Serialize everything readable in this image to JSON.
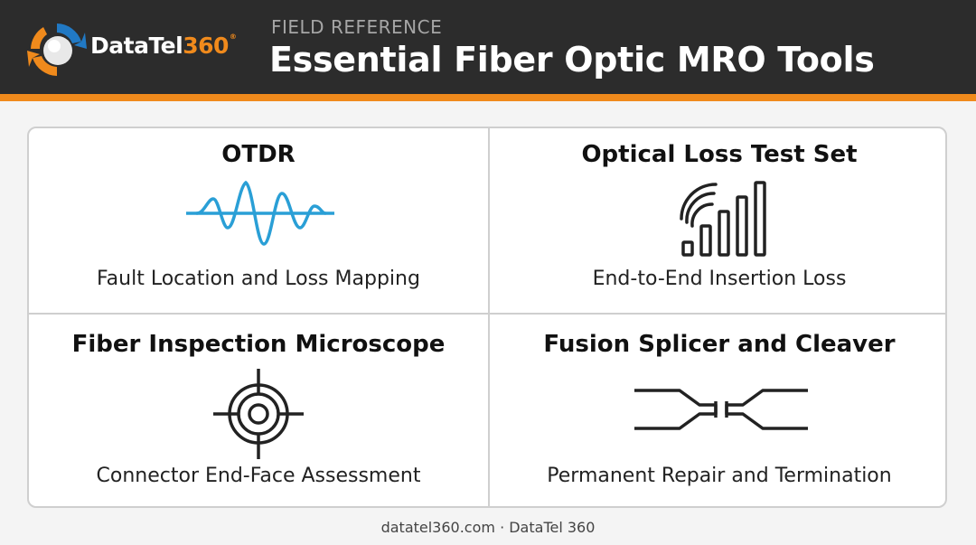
{
  "brand": {
    "name_text": "DataTel",
    "name_number": "360",
    "registered_mark": "®"
  },
  "header": {
    "eyebrow": "FIELD REFERENCE",
    "title": "Essential Fiber Optic MRO Tools"
  },
  "tools": [
    {
      "title": "OTDR",
      "subtitle": "Fault Location and Loss Mapping",
      "icon": "waveform-icon"
    },
    {
      "title": "Optical Loss Test Set",
      "subtitle": "End-to-End Insertion Loss",
      "icon": "signal-bars-icon"
    },
    {
      "title": "Fiber Inspection Microscope",
      "subtitle": "Connector End-Face Assessment",
      "icon": "crosshair-icon"
    },
    {
      "title": "Fusion Splicer and Cleaver",
      "subtitle": "Permanent Repair and Termination",
      "icon": "fiber-splice-icon"
    }
  ],
  "footer": {
    "text": "datatel360.com · DataTel 360"
  },
  "colors": {
    "header_bg": "#2c2c2c",
    "accent": "#f08a1c",
    "otdr_wave": "#2a9fd6",
    "logo_blue": "#2179c4"
  }
}
